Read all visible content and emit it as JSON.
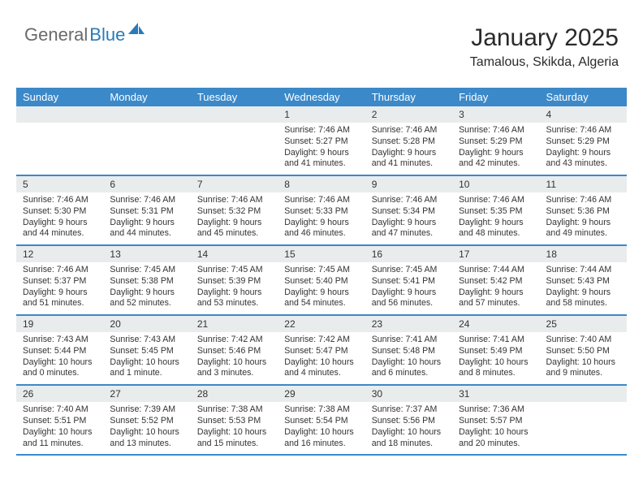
{
  "logo": {
    "text1": "General",
    "text2": "Blue"
  },
  "header": {
    "month": "January 2025",
    "location": "Tamalous, Skikda, Algeria"
  },
  "colors": {
    "header_bg": "#3b89c9",
    "header_text": "#ffffff",
    "daynum_bg": "#e9eced",
    "row_border": "#3b89c9",
    "logo_gray": "#6a6a6a",
    "logo_blue": "#2a7ab8"
  },
  "dow": [
    "Sunday",
    "Monday",
    "Tuesday",
    "Wednesday",
    "Thursday",
    "Friday",
    "Saturday"
  ],
  "weeks": [
    [
      null,
      null,
      null,
      {
        "n": "1",
        "sunrise": "Sunrise: 7:46 AM",
        "sunset": "Sunset: 5:27 PM",
        "daylight": "Daylight: 9 hours and 41 minutes."
      },
      {
        "n": "2",
        "sunrise": "Sunrise: 7:46 AM",
        "sunset": "Sunset: 5:28 PM",
        "daylight": "Daylight: 9 hours and 41 minutes."
      },
      {
        "n": "3",
        "sunrise": "Sunrise: 7:46 AM",
        "sunset": "Sunset: 5:29 PM",
        "daylight": "Daylight: 9 hours and 42 minutes."
      },
      {
        "n": "4",
        "sunrise": "Sunrise: 7:46 AM",
        "sunset": "Sunset: 5:29 PM",
        "daylight": "Daylight: 9 hours and 43 minutes."
      }
    ],
    [
      {
        "n": "5",
        "sunrise": "Sunrise: 7:46 AM",
        "sunset": "Sunset: 5:30 PM",
        "daylight": "Daylight: 9 hours and 44 minutes."
      },
      {
        "n": "6",
        "sunrise": "Sunrise: 7:46 AM",
        "sunset": "Sunset: 5:31 PM",
        "daylight": "Daylight: 9 hours and 44 minutes."
      },
      {
        "n": "7",
        "sunrise": "Sunrise: 7:46 AM",
        "sunset": "Sunset: 5:32 PM",
        "daylight": "Daylight: 9 hours and 45 minutes."
      },
      {
        "n": "8",
        "sunrise": "Sunrise: 7:46 AM",
        "sunset": "Sunset: 5:33 PM",
        "daylight": "Daylight: 9 hours and 46 minutes."
      },
      {
        "n": "9",
        "sunrise": "Sunrise: 7:46 AM",
        "sunset": "Sunset: 5:34 PM",
        "daylight": "Daylight: 9 hours and 47 minutes."
      },
      {
        "n": "10",
        "sunrise": "Sunrise: 7:46 AM",
        "sunset": "Sunset: 5:35 PM",
        "daylight": "Daylight: 9 hours and 48 minutes."
      },
      {
        "n": "11",
        "sunrise": "Sunrise: 7:46 AM",
        "sunset": "Sunset: 5:36 PM",
        "daylight": "Daylight: 9 hours and 49 minutes."
      }
    ],
    [
      {
        "n": "12",
        "sunrise": "Sunrise: 7:46 AM",
        "sunset": "Sunset: 5:37 PM",
        "daylight": "Daylight: 9 hours and 51 minutes."
      },
      {
        "n": "13",
        "sunrise": "Sunrise: 7:45 AM",
        "sunset": "Sunset: 5:38 PM",
        "daylight": "Daylight: 9 hours and 52 minutes."
      },
      {
        "n": "14",
        "sunrise": "Sunrise: 7:45 AM",
        "sunset": "Sunset: 5:39 PM",
        "daylight": "Daylight: 9 hours and 53 minutes."
      },
      {
        "n": "15",
        "sunrise": "Sunrise: 7:45 AM",
        "sunset": "Sunset: 5:40 PM",
        "daylight": "Daylight: 9 hours and 54 minutes."
      },
      {
        "n": "16",
        "sunrise": "Sunrise: 7:45 AM",
        "sunset": "Sunset: 5:41 PM",
        "daylight": "Daylight: 9 hours and 56 minutes."
      },
      {
        "n": "17",
        "sunrise": "Sunrise: 7:44 AM",
        "sunset": "Sunset: 5:42 PM",
        "daylight": "Daylight: 9 hours and 57 minutes."
      },
      {
        "n": "18",
        "sunrise": "Sunrise: 7:44 AM",
        "sunset": "Sunset: 5:43 PM",
        "daylight": "Daylight: 9 hours and 58 minutes."
      }
    ],
    [
      {
        "n": "19",
        "sunrise": "Sunrise: 7:43 AM",
        "sunset": "Sunset: 5:44 PM",
        "daylight": "Daylight: 10 hours and 0 minutes."
      },
      {
        "n": "20",
        "sunrise": "Sunrise: 7:43 AM",
        "sunset": "Sunset: 5:45 PM",
        "daylight": "Daylight: 10 hours and 1 minute."
      },
      {
        "n": "21",
        "sunrise": "Sunrise: 7:42 AM",
        "sunset": "Sunset: 5:46 PM",
        "daylight": "Daylight: 10 hours and 3 minutes."
      },
      {
        "n": "22",
        "sunrise": "Sunrise: 7:42 AM",
        "sunset": "Sunset: 5:47 PM",
        "daylight": "Daylight: 10 hours and 4 minutes."
      },
      {
        "n": "23",
        "sunrise": "Sunrise: 7:41 AM",
        "sunset": "Sunset: 5:48 PM",
        "daylight": "Daylight: 10 hours and 6 minutes."
      },
      {
        "n": "24",
        "sunrise": "Sunrise: 7:41 AM",
        "sunset": "Sunset: 5:49 PM",
        "daylight": "Daylight: 10 hours and 8 minutes."
      },
      {
        "n": "25",
        "sunrise": "Sunrise: 7:40 AM",
        "sunset": "Sunset: 5:50 PM",
        "daylight": "Daylight: 10 hours and 9 minutes."
      }
    ],
    [
      {
        "n": "26",
        "sunrise": "Sunrise: 7:40 AM",
        "sunset": "Sunset: 5:51 PM",
        "daylight": "Daylight: 10 hours and 11 minutes."
      },
      {
        "n": "27",
        "sunrise": "Sunrise: 7:39 AM",
        "sunset": "Sunset: 5:52 PM",
        "daylight": "Daylight: 10 hours and 13 minutes."
      },
      {
        "n": "28",
        "sunrise": "Sunrise: 7:38 AM",
        "sunset": "Sunset: 5:53 PM",
        "daylight": "Daylight: 10 hours and 15 minutes."
      },
      {
        "n": "29",
        "sunrise": "Sunrise: 7:38 AM",
        "sunset": "Sunset: 5:54 PM",
        "daylight": "Daylight: 10 hours and 16 minutes."
      },
      {
        "n": "30",
        "sunrise": "Sunrise: 7:37 AM",
        "sunset": "Sunset: 5:56 PM",
        "daylight": "Daylight: 10 hours and 18 minutes."
      },
      {
        "n": "31",
        "sunrise": "Sunrise: 7:36 AM",
        "sunset": "Sunset: 5:57 PM",
        "daylight": "Daylight: 10 hours and 20 minutes."
      },
      null
    ]
  ]
}
